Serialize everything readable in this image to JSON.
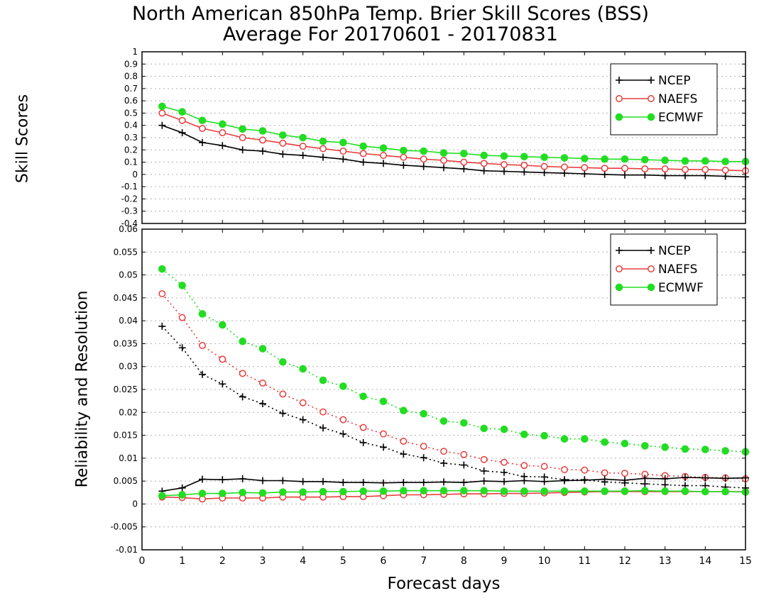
{
  "title_line1": "North American 850hPa Temp. Brier Skill Scores (BSS)",
  "title_line2": "Average For 20170601 - 20170831",
  "xlabel": "Forecast days",
  "colors": {
    "NCEP": "#000000",
    "NAEFS": "#e83c3c",
    "ECMWF": "#22dd22",
    "grid": "#b0b0b0"
  },
  "chart_data": [
    {
      "type": "line",
      "ylabel": "Skill Scores",
      "xlim": [
        0,
        15
      ],
      "ylim": [
        -0.4,
        1
      ],
      "x_ticks": [
        "0",
        "1",
        "2",
        "3",
        "4",
        "5",
        "6",
        "7",
        "8",
        "9",
        "10",
        "11",
        "12",
        "13",
        "14",
        "15"
      ],
      "y_ticks": [
        "-0.4",
        "-0.3",
        "-0.2",
        "-0.1",
        "0",
        "0.1",
        "0.2",
        "0.3",
        "0.4",
        "0.5",
        "0.6",
        "0.7",
        "0.8",
        "0.9",
        "1"
      ],
      "grid": "horizontal dotted",
      "legend_position": "top-right",
      "legend": [
        "NCEP",
        "NAEFS",
        "ECMWF"
      ],
      "x": [
        0.5,
        1,
        1.5,
        2,
        2.5,
        3,
        3.5,
        4,
        4.5,
        5,
        5.5,
        6,
        6.5,
        7,
        7.5,
        8,
        8.5,
        9,
        9.5,
        10,
        10.5,
        11,
        11.5,
        12,
        12.5,
        13,
        13.5,
        14,
        14.5,
        15
      ],
      "series": [
        {
          "name": "NCEP",
          "marker": "plus",
          "style": "solid",
          "values": [
            0.4,
            0.34,
            0.26,
            0.235,
            0.2,
            0.19,
            0.165,
            0.155,
            0.14,
            0.125,
            0.1,
            0.09,
            0.075,
            0.065,
            0.055,
            0.045,
            0.03,
            0.025,
            0.02,
            0.015,
            0.01,
            0.005,
            0.0,
            -0.005,
            -0.005,
            -0.01,
            -0.01,
            -0.01,
            -0.015,
            -0.02
          ]
        },
        {
          "name": "NAEFS",
          "marker": "open-circle",
          "style": "solid",
          "values": [
            0.5,
            0.44,
            0.375,
            0.34,
            0.3,
            0.28,
            0.255,
            0.23,
            0.21,
            0.19,
            0.17,
            0.155,
            0.14,
            0.125,
            0.115,
            0.1,
            0.09,
            0.08,
            0.075,
            0.065,
            0.06,
            0.055,
            0.05,
            0.05,
            0.045,
            0.045,
            0.04,
            0.04,
            0.035,
            0.03
          ]
        },
        {
          "name": "ECMWF",
          "marker": "filled-circle",
          "style": "solid",
          "values": [
            0.555,
            0.51,
            0.44,
            0.41,
            0.37,
            0.355,
            0.32,
            0.3,
            0.27,
            0.26,
            0.23,
            0.215,
            0.195,
            0.19,
            0.175,
            0.17,
            0.155,
            0.15,
            0.145,
            0.14,
            0.135,
            0.13,
            0.125,
            0.125,
            0.12,
            0.115,
            0.11,
            0.11,
            0.105,
            0.105
          ]
        }
      ]
    },
    {
      "type": "line",
      "ylabel": "Reliability and Resolution",
      "xlim": [
        0,
        15
      ],
      "ylim": [
        -0.01,
        0.06
      ],
      "x_ticks": [
        "0",
        "1",
        "2",
        "3",
        "4",
        "5",
        "6",
        "7",
        "8",
        "9",
        "10",
        "11",
        "12",
        "13",
        "14",
        "15"
      ],
      "y_ticks": [
        "-0.01",
        "-0.005",
        "0",
        "0.005",
        "0.01",
        "0.015",
        "0.02",
        "0.025",
        "0.03",
        "0.035",
        "0.04",
        "0.045",
        "0.05",
        "0.055",
        "0.06"
      ],
      "grid": "horizontal dotted",
      "legend_position": "top-right",
      "legend": [
        "NCEP",
        "NAEFS",
        "ECMWF"
      ],
      "x": [
        0.5,
        1,
        1.5,
        2,
        2.5,
        3,
        3.5,
        4,
        4.5,
        5,
        5.5,
        6,
        6.5,
        7,
        7.5,
        8,
        8.5,
        9,
        9.5,
        10,
        10.5,
        11,
        11.5,
        12,
        12.5,
        13,
        13.5,
        14,
        14.5,
        15
      ],
      "series": [
        {
          "name": "NCEP",
          "marker": "plus",
          "style": "dotted",
          "values": [
            0.0388,
            0.0341,
            0.0283,
            0.0262,
            0.0234,
            0.0219,
            0.0198,
            0.0184,
            0.0166,
            0.0153,
            0.0134,
            0.0124,
            0.0109,
            0.0101,
            0.0089,
            0.0085,
            0.0072,
            0.0069,
            0.006,
            0.0059,
            0.0053,
            0.0053,
            0.0048,
            0.0046,
            0.0044,
            0.0042,
            0.004,
            0.004,
            0.0037,
            0.0035
          ]
        },
        {
          "name": "NAEFS",
          "marker": "open-circle",
          "style": "dotted",
          "values": [
            0.0459,
            0.0407,
            0.0346,
            0.0316,
            0.0285,
            0.0264,
            0.024,
            0.0221,
            0.0201,
            0.0184,
            0.0167,
            0.0153,
            0.0137,
            0.0126,
            0.0115,
            0.0108,
            0.0097,
            0.0091,
            0.0084,
            0.0082,
            0.0075,
            0.0074,
            0.0068,
            0.0067,
            0.0065,
            0.0062,
            0.006,
            0.0058,
            0.0057,
            0.0055
          ]
        },
        {
          "name": "ECMWF",
          "marker": "filled-circle",
          "style": "dotted",
          "values": [
            0.0513,
            0.0477,
            0.0415,
            0.0391,
            0.0355,
            0.0339,
            0.031,
            0.0295,
            0.027,
            0.0257,
            0.0235,
            0.0224,
            0.0204,
            0.0197,
            0.0181,
            0.0177,
            0.0165,
            0.0163,
            0.0152,
            0.0149,
            0.0142,
            0.0142,
            0.0135,
            0.0132,
            0.0127,
            0.0124,
            0.012,
            0.0119,
            0.0116,
            0.0114
          ]
        },
        {
          "name": "NCEP",
          "marker": "plus",
          "style": "solid",
          "values": [
            0.0028,
            0.0035,
            0.0054,
            0.0053,
            0.0055,
            0.0051,
            0.0051,
            0.0049,
            0.0049,
            0.0047,
            0.0047,
            0.0046,
            0.0047,
            0.0047,
            0.0048,
            0.0047,
            0.005,
            0.0049,
            0.0051,
            0.0049,
            0.0051,
            0.0052,
            0.0054,
            0.0052,
            0.0056,
            0.0055,
            0.0058,
            0.0057,
            0.0056,
            0.0057
          ]
        },
        {
          "name": "NAEFS",
          "marker": "open-circle",
          "style": "solid",
          "values": [
            0.0015,
            0.0014,
            0.0011,
            0.0013,
            0.0013,
            0.0013,
            0.0015,
            0.0015,
            0.0015,
            0.0016,
            0.0016,
            0.0018,
            0.002,
            0.002,
            0.0021,
            0.0022,
            0.0022,
            0.0023,
            0.0023,
            0.0024,
            0.0025,
            0.0026,
            0.0027,
            0.0027,
            0.0027,
            0.0027,
            0.0027,
            0.0027,
            0.0027,
            0.0027
          ]
        },
        {
          "name": "ECMWF",
          "marker": "filled-circle",
          "style": "solid",
          "values": [
            0.0018,
            0.002,
            0.0023,
            0.0023,
            0.0025,
            0.0024,
            0.0026,
            0.0026,
            0.0027,
            0.0027,
            0.0028,
            0.0028,
            0.0029,
            0.0029,
            0.0029,
            0.0029,
            0.0029,
            0.0028,
            0.0028,
            0.0028,
            0.0028,
            0.0028,
            0.0028,
            0.0028,
            0.0029,
            0.0028,
            0.0028,
            0.0027,
            0.0027,
            0.0026
          ]
        }
      ]
    }
  ]
}
